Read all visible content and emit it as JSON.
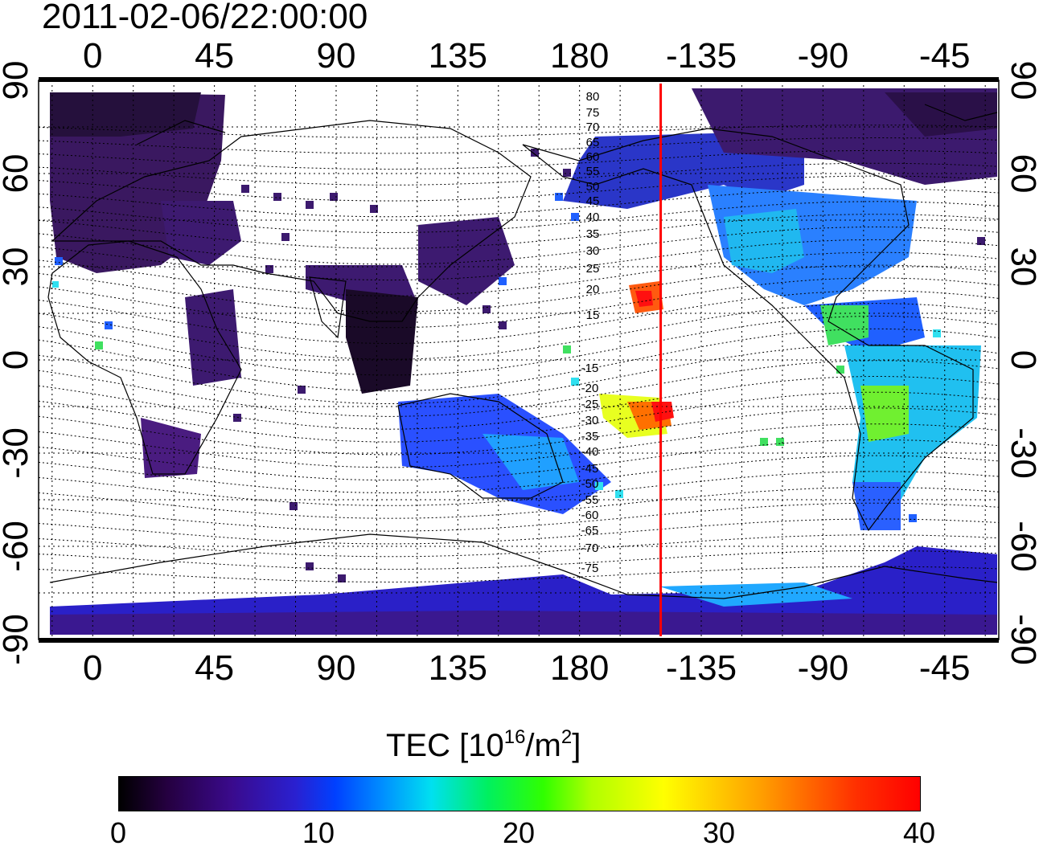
{
  "title": "2011-02-06/22:00:00",
  "map": {
    "lon_ticks": [
      {
        "label": "0",
        "lon": 0
      },
      {
        "label": "45",
        "lon": 45
      },
      {
        "label": "90",
        "lon": 90
      },
      {
        "label": "135",
        "lon": 135
      },
      {
        "label": "180",
        "lon": 180
      },
      {
        "label": "-135",
        "lon": 225
      },
      {
        "label": "-90",
        "lon": 270
      },
      {
        "label": "-45",
        "lon": 315
      }
    ],
    "lat_ticks": [
      {
        "label": "90",
        "lat": 90
      },
      {
        "label": "60",
        "lat": 60
      },
      {
        "label": "30",
        "lat": 30
      },
      {
        "label": "0",
        "lat": 0
      },
      {
        "label": "-30",
        "lat": -30
      },
      {
        "label": "-60",
        "lat": -60
      },
      {
        "label": "-90",
        "lat": -90
      }
    ],
    "lon_range": [
      -20,
      335
    ],
    "lat_range": [
      -90,
      90
    ],
    "marker_line_lon": 210,
    "marker_line_color": "#ff0000",
    "contour_labels": {
      "north": [
        "80",
        "75",
        "70",
        "65",
        "60",
        "55",
        "50",
        "45",
        "40",
        "35",
        "30",
        "25",
        "20",
        "15"
      ],
      "south": [
        "-15",
        "-20",
        "-25",
        "-30",
        "-35",
        "-40",
        "-45",
        "-50",
        "-55",
        "-60",
        "-65",
        "-70",
        "-75"
      ]
    }
  },
  "colorbar": {
    "label_main": "TEC  [10",
    "label_exp1": "16",
    "label_mid": "/m",
    "label_exp2": "2",
    "label_end": "]",
    "ticks": [
      "0",
      "10",
      "20",
      "30",
      "40"
    ],
    "min": 0,
    "max": 40
  }
}
